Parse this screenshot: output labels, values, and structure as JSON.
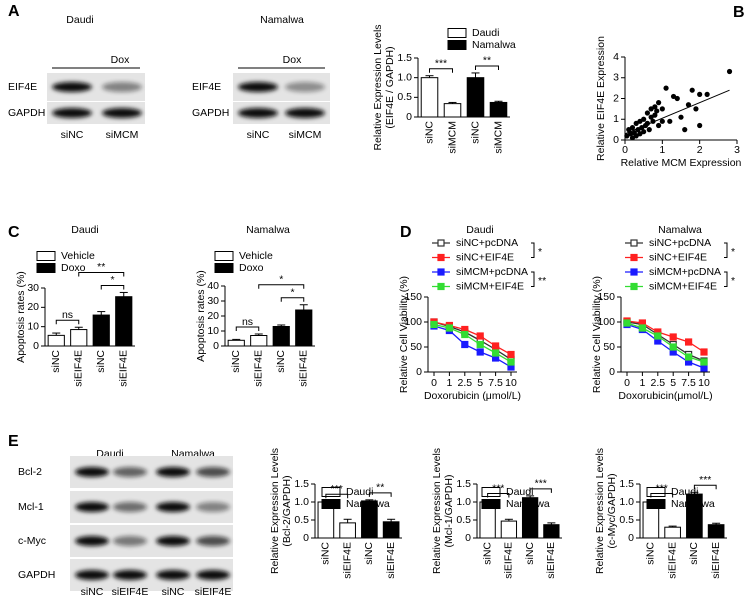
{
  "panel_letters": [
    "A",
    "B",
    "C",
    "D",
    "E"
  ],
  "blots": [
    {
      "title": "Daudi",
      "treatment": "Dox",
      "rows": [
        "EIF4E",
        "GAPDH"
      ],
      "lanes": [
        "siNC",
        "siMCM"
      ]
    },
    {
      "title": "Namalwa",
      "treatment": "Dox",
      "rows": [
        "EIF4E",
        "GAPDH"
      ],
      "lanes": [
        "siNC",
        "siMCM"
      ]
    },
    {
      "groups": [
        "Daudi",
        "Namalwa"
      ],
      "rows": [
        "Bcl-2",
        "Mcl-1",
        "c-Myc",
        "GAPDH"
      ],
      "lanes": [
        "siNC",
        "siEIF4E",
        "siNC",
        "siEIF4E"
      ]
    }
  ],
  "chart_data": [
    {
      "type": "bar",
      "ylabel": [
        "Relative Expression Levels",
        "(EIF4E / GAPDH)"
      ],
      "categories": [
        "siNC",
        "siMCM",
        "siNC",
        "siMCM"
      ],
      "series": [
        {
          "name": "Daudi",
          "color": "#ffffff",
          "values": [
            1.0,
            0.34,
            null,
            null
          ],
          "errors": [
            0.05,
            0.03,
            null,
            null
          ]
        },
        {
          "name": "Namalwa",
          "color": "#000000",
          "values": [
            null,
            null,
            1.0,
            0.37
          ],
          "errors": [
            null,
            null,
            0.12,
            0.03
          ]
        }
      ],
      "ylim": [
        0,
        1.5
      ],
      "yticks": [
        0,
        0.5,
        {
          "value": 1,
          "label": "1.0"
        },
        1.5
      ],
      "annotations": [
        "***",
        "**"
      ]
    },
    {
      "type": "scatter",
      "xlabel": "Relative MCM Expression",
      "ylabel": [
        "Relative EIF4E Expression"
      ],
      "x": [
        0.05,
        0.1,
        0.15,
        0.2,
        0.2,
        0.25,
        0.3,
        0.3,
        0.35,
        0.4,
        0.4,
        0.45,
        0.5,
        0.5,
        0.55,
        0.6,
        0.6,
        0.65,
        0.7,
        0.7,
        0.75,
        0.8,
        0.8,
        0.85,
        0.9,
        0.9,
        1.0,
        1.0,
        1.1,
        1.2,
        1.3,
        1.4,
        1.5,
        1.6,
        1.7,
        1.8,
        1.9,
        2.0,
        2.0,
        2.2,
        2.8
      ],
      "values": [
        0.2,
        0.5,
        0.3,
        0.1,
        0.6,
        0.35,
        0.2,
        0.8,
        0.5,
        0.3,
        0.9,
        0.6,
        0.4,
        1.0,
        0.7,
        0.8,
        1.3,
        0.5,
        1.1,
        1.5,
        0.9,
        1.6,
        1.2,
        1.4,
        0.7,
        1.8,
        1.5,
        0.9,
        2.5,
        0.9,
        2.1,
        2.0,
        1.1,
        0.5,
        1.7,
        2.4,
        1.5,
        0.7,
        2.2,
        2.2,
        3.3
      ],
      "color": "#000000",
      "trendline": {
        "x": [
          0,
          2.8
        ],
        "y": [
          0.3,
          2.4
        ]
      },
      "xlim": [
        0,
        3
      ],
      "xticks": [
        0,
        1,
        2,
        3
      ],
      "ylim": [
        0,
        4
      ],
      "yticks": [
        0,
        1,
        2,
        3,
        4
      ]
    },
    {
      "type": "bar",
      "title": "Daudi",
      "ylabel": [
        "Apoptosis rates (%)"
      ],
      "categories": [
        "siNC",
        "siEIF4E",
        "siNC",
        "siEIF4E"
      ],
      "series": [
        {
          "name": "Vehicle",
          "color": "#ffffff",
          "values": [
            5.5,
            8.5,
            null,
            null
          ],
          "errors": [
            1.2,
            1.2,
            null,
            null
          ]
        },
        {
          "name": "Doxo",
          "color": "#000000",
          "values": [
            null,
            null,
            16,
            25.5
          ],
          "errors": [
            null,
            null,
            1.8,
            2.2
          ]
        }
      ],
      "ylim": [
        0,
        30
      ],
      "yticks": [
        0,
        10,
        20,
        30
      ],
      "annotations": [
        "ns",
        "**",
        "*"
      ]
    },
    {
      "type": "bar",
      "title": "Namalwa",
      "ylabel": [
        "Apoptosis rates (%)"
      ],
      "categories": [
        "siNC",
        "siEIF4E",
        "siNC",
        "siEIF4E"
      ],
      "series": [
        {
          "name": "Vehicle",
          "color": "#ffffff",
          "values": [
            3.8,
            7,
            null,
            null
          ],
          "errors": [
            0.6,
            1,
            null,
            null
          ]
        },
        {
          "name": "Doxo",
          "color": "#000000",
          "values": [
            null,
            null,
            13,
            24
          ],
          "errors": [
            null,
            null,
            1,
            3.5
          ]
        }
      ],
      "ylim": [
        0,
        40
      ],
      "yticks": [
        0,
        10,
        20,
        30,
        40
      ],
      "annotations": [
        "ns",
        "*",
        "*"
      ]
    },
    {
      "type": "line",
      "title": "Daudi",
      "xlabel": "Doxorubicin (μmol/L)",
      "ylabel": [
        "Relative Cell Viability (%)"
      ],
      "categories": [
        "0",
        "1",
        "2.5",
        "5",
        "7.5",
        "10"
      ],
      "series": [
        {
          "name": "siNC+pcDNA",
          "color": "#333333",
          "open": true,
          "values": [
            100,
            91,
            80,
            63,
            45,
            25
          ]
        },
        {
          "name": "siNC+EIF4E",
          "color": "#ff2020",
          "values": [
            100,
            93,
            85,
            72,
            52,
            35
          ]
        },
        {
          "name": "siMCM+pcDNA",
          "color": "#1a1aff",
          "values": [
            92,
            83,
            55,
            40,
            28,
            10
          ]
        },
        {
          "name": "siMCM+EIF4E",
          "color": "#33dd33",
          "values": [
            95,
            88,
            75,
            55,
            38,
            20
          ]
        }
      ],
      "ylim": [
        0,
        150
      ],
      "yticks": [
        0,
        50,
        100,
        150
      ],
      "annotations": [
        "*",
        "**"
      ]
    },
    {
      "type": "line",
      "title": "Namalwa",
      "xlabel": "Doxorubicin(μmol/L)",
      "ylabel": [
        "Relative Cell Viability (%)"
      ],
      "categories": [
        "0",
        "1",
        "2.5",
        "5",
        "7.5",
        "10"
      ],
      "series": [
        {
          "name": "siNC+pcDNA",
          "color": "#333333",
          "open": true,
          "values": [
            100,
            95,
            75,
            55,
            35,
            22
          ]
        },
        {
          "name": "siNC+EIF4E",
          "color": "#ff2020",
          "values": [
            102,
            98,
            80,
            70,
            60,
            40
          ]
        },
        {
          "name": "siMCM+pcDNA",
          "color": "#1a1aff",
          "values": [
            95,
            85,
            62,
            40,
            20,
            8
          ]
        },
        {
          "name": "siMCM+EIF4E",
          "color": "#33dd33",
          "values": [
            98,
            88,
            72,
            50,
            30,
            20
          ]
        }
      ],
      "ylim": [
        0,
        150
      ],
      "yticks": [
        0,
        50,
        100,
        150
      ],
      "annotations": [
        "*",
        "*"
      ]
    },
    {
      "type": "bar",
      "ylabel": [
        "Relative Expression Levels",
        "(Bcl-2/GAPDH)"
      ],
      "categories": [
        "siNC",
        "siEIF4E",
        "siNC",
        "siEIF4E"
      ],
      "series": [
        {
          "name": "Daudi",
          "color": "#ffffff",
          "values": [
            1.0,
            0.42,
            null,
            null
          ],
          "errors": [
            0.02,
            0.1,
            null,
            null
          ]
        },
        {
          "name": "Namalwa",
          "color": "#000000",
          "values": [
            null,
            null,
            1.03,
            0.45
          ],
          "errors": [
            null,
            null,
            0.03,
            0.07
          ]
        }
      ],
      "ylim": [
        0,
        1.5
      ],
      "yticks": [
        0,
        0.5,
        {
          "value": 1,
          "label": "1.0"
        },
        1.5
      ],
      "annotations": [
        "***",
        "**"
      ]
    },
    {
      "type": "bar",
      "ylabel": [
        "Relative Expression Levels",
        "(Mcl-1/GAPDH)"
      ],
      "categories": [
        "siNC",
        "siEIF4E",
        "siNC",
        "siEIF4E"
      ],
      "series": [
        {
          "name": "Daudi",
          "color": "#ffffff",
          "values": [
            1.0,
            0.47,
            null,
            null
          ],
          "errors": [
            0.04,
            0.05,
            null,
            null
          ]
        },
        {
          "name": "Namalwa",
          "color": "#000000",
          "values": [
            null,
            null,
            1.12,
            0.37
          ],
          "errors": [
            null,
            null,
            0.05,
            0.05
          ]
        }
      ],
      "ylim": [
        0,
        1.5
      ],
      "yticks": [
        0,
        0.5,
        {
          "value": 1,
          "label": "1.0"
        },
        1.5
      ],
      "annotations": [
        "***",
        "***"
      ]
    },
    {
      "type": "bar",
      "ylabel": [
        "Relative Expression Levels",
        "(c-Myc/GAPDH)"
      ],
      "categories": [
        "siNC",
        "siEIF4E",
        "siNC",
        "siEIF4E"
      ],
      "series": [
        {
          "name": "Daudi",
          "color": "#ffffff",
          "values": [
            1.0,
            0.3,
            null,
            null
          ],
          "errors": [
            0.04,
            0.03,
            null,
            null
          ]
        },
        {
          "name": "Namalwa",
          "color": "#000000",
          "values": [
            null,
            null,
            1.22,
            0.37
          ],
          "errors": [
            null,
            null,
            0.05,
            0.04
          ]
        }
      ],
      "ylim": [
        0,
        1.5
      ],
      "yticks": [
        0,
        0.5,
        {
          "value": 1,
          "label": "1.0"
        },
        1.5
      ],
      "annotations": [
        "***",
        "***"
      ]
    }
  ]
}
